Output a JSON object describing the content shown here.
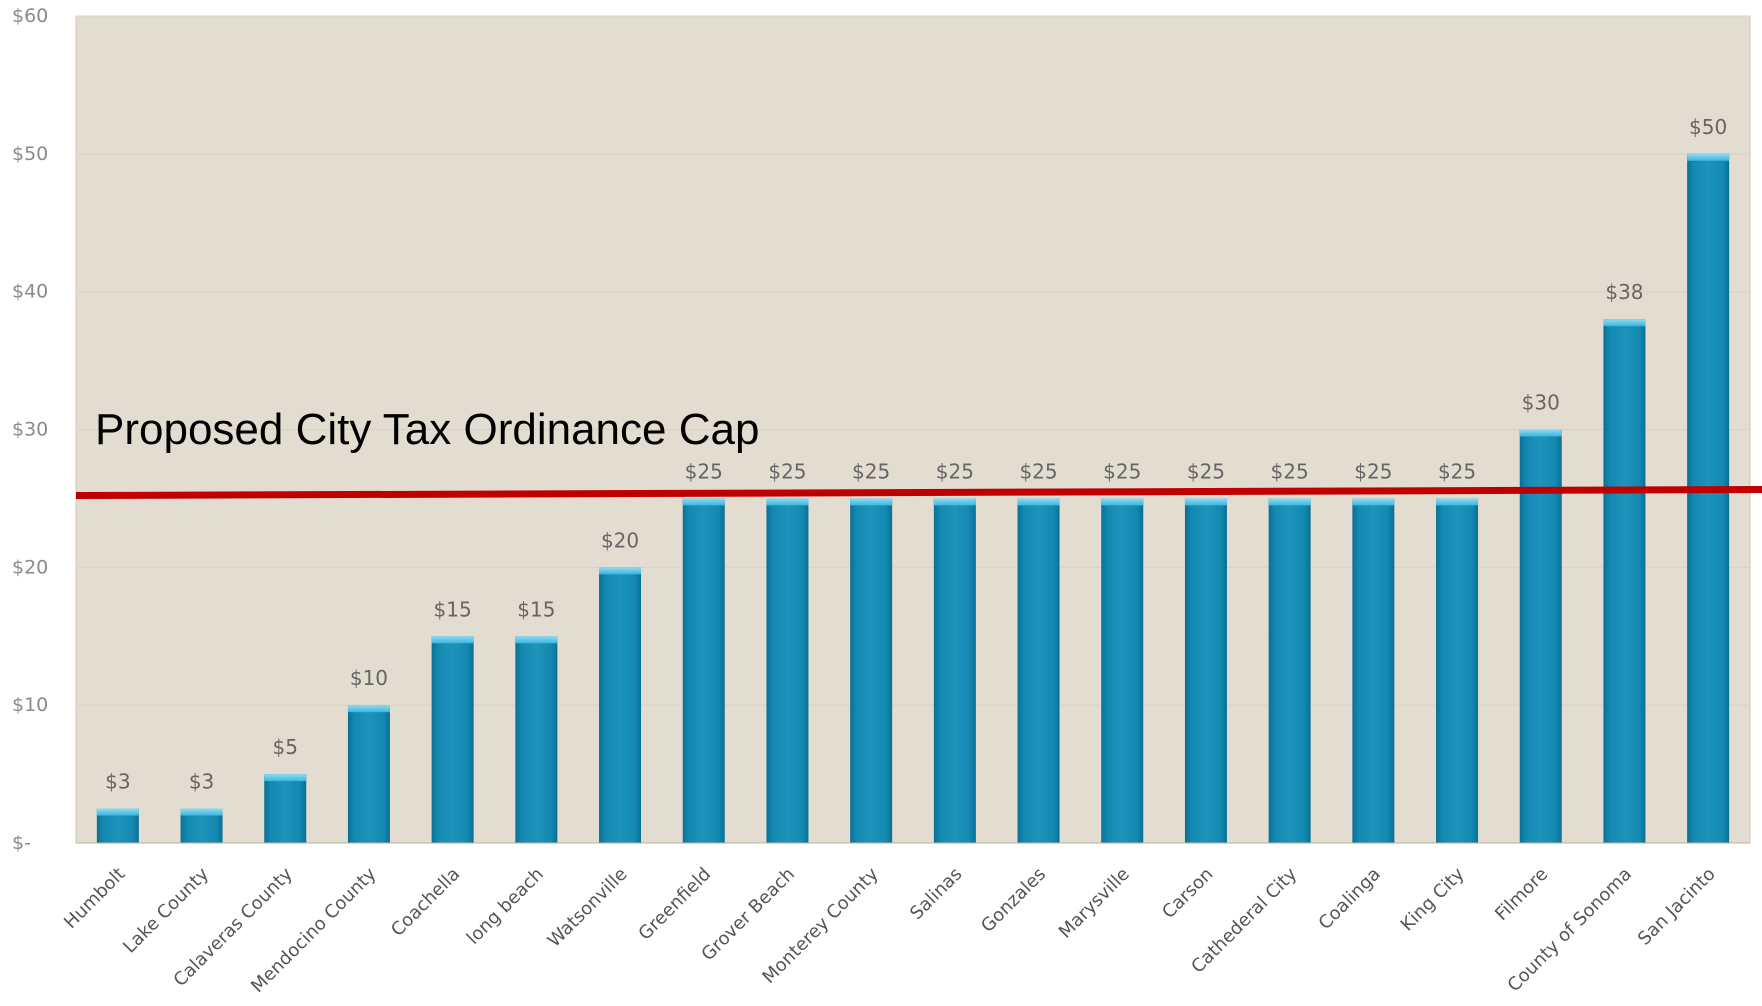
{
  "chart_data": {
    "type": "bar",
    "categories": [
      "Humbolt",
      "Lake County",
      "Calaveras County",
      "Mendocino County",
      "Coachella",
      "long beach",
      "Watsonville",
      "Greenfield",
      "Grover Beach",
      "Monterey County",
      "Salinas",
      "Gonzales",
      "Marysville",
      "Carson",
      "Cathederal City",
      "Coalinga",
      "King City",
      "Filmore",
      "County of Sonoma",
      "San Jacinto"
    ],
    "values": [
      2.5,
      2.5,
      5,
      10,
      15,
      15,
      20,
      25,
      25,
      25,
      25,
      25,
      25,
      25,
      25,
      25,
      25,
      30,
      38,
      50
    ],
    "data_labels": [
      "$3",
      "$3",
      "$5",
      "$10",
      "$15",
      "$15",
      "$20",
      "$25",
      "$25",
      "$25",
      "$25",
      "$25",
      "$25",
      "$25",
      "$25",
      "$25",
      "$25",
      "$30",
      "$38",
      "$50"
    ],
    "ylim": [
      0,
      60
    ],
    "yticks": [
      0,
      10,
      20,
      30,
      40,
      50,
      60
    ],
    "ytick_labels": [
      "$-",
      "$10",
      "$20",
      "$30",
      "$40",
      "$50",
      "$60"
    ],
    "grid": true,
    "reference_line": {
      "label": "Proposed City Tax Ordinance Cap",
      "value": 25.5,
      "color": "#c00000"
    },
    "colors": {
      "bar": "#1e94bb",
      "bar_light": "#56c4e6",
      "bar_dark": "#0b6f93",
      "plot_background": "#e2ddd0",
      "gridline": "#d8d2c4"
    }
  }
}
